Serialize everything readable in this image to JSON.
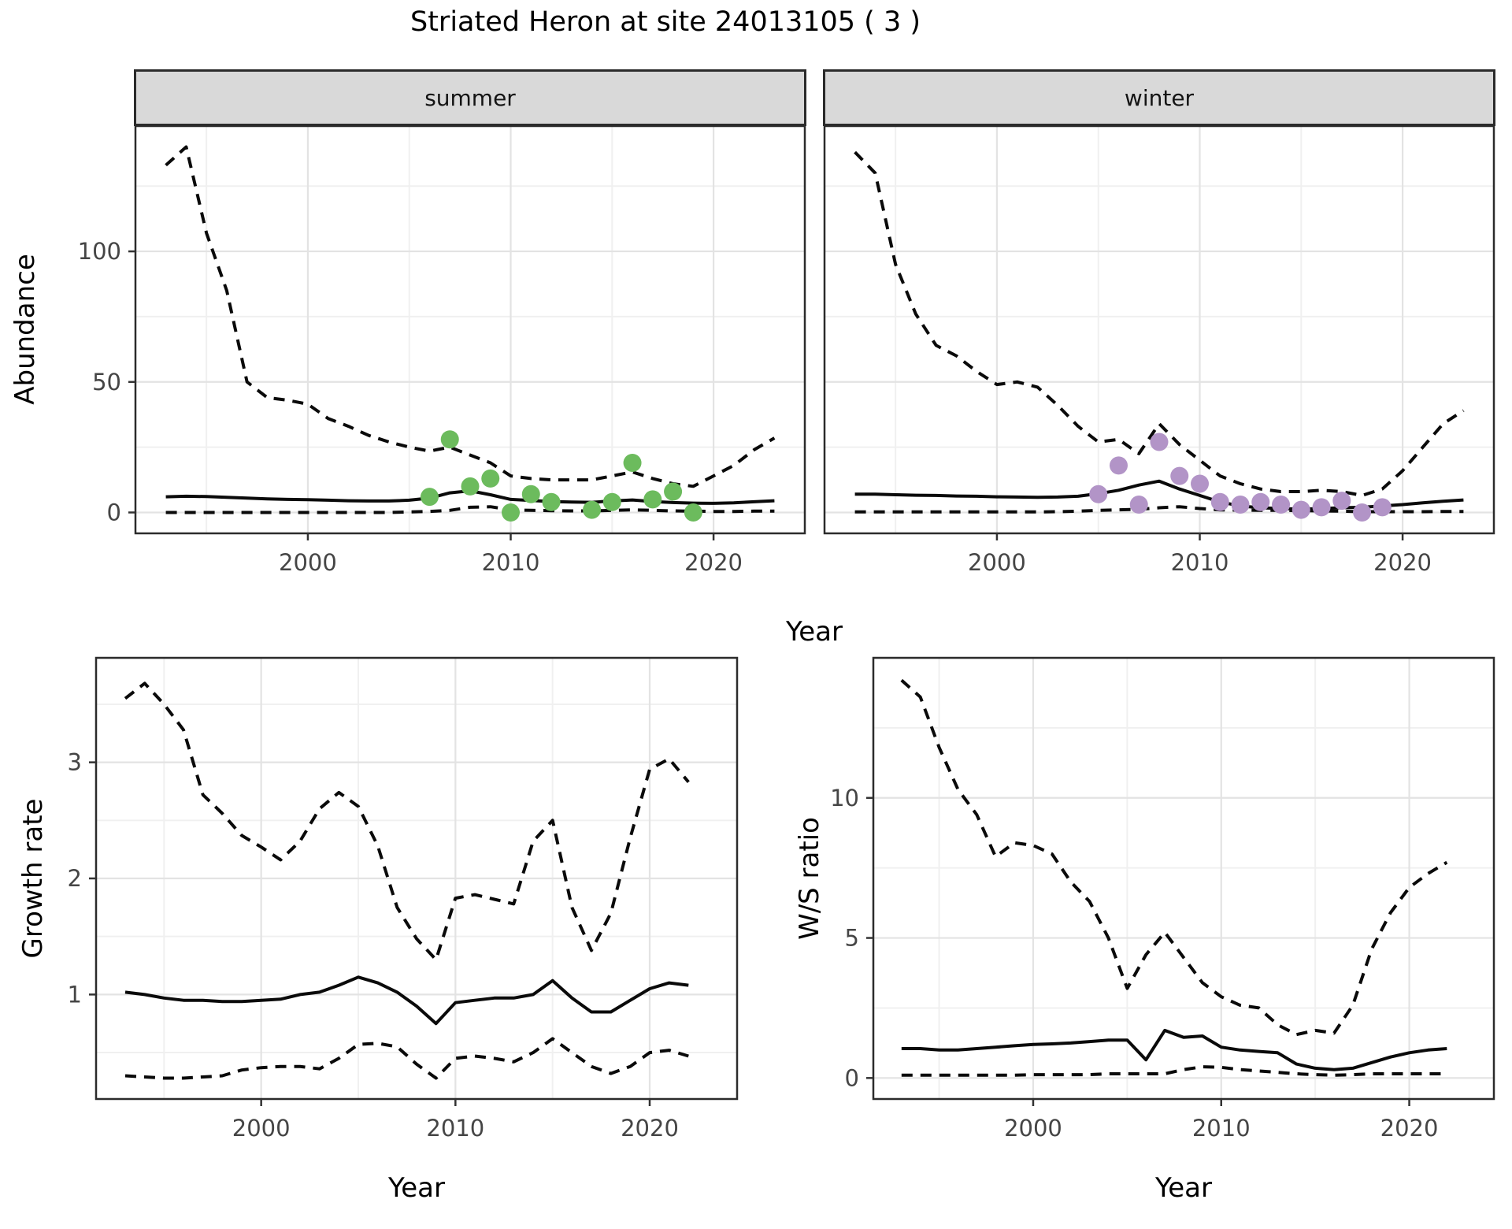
{
  "title": "Striated Heron at site 24013105 ( 3 )",
  "colors": {
    "summer_points": "#6CBB5D",
    "winter_points": "#B294C7",
    "strip_background": "#D9D9D9",
    "line": "#0A0A0A",
    "grid_major": "#E3E3E3",
    "grid_minor": "#F0F0F0",
    "panel_border": "#2B2B2B",
    "axis_text": "#454545"
  },
  "chart_data": [
    {
      "id": "abundance_summer",
      "type": "line",
      "facet_label": "summer",
      "ylabel": "Abundance",
      "xlabel": "Year",
      "xlim": [
        1991.5,
        2024.5
      ],
      "ylim": [
        -8,
        148
      ],
      "xticks": {
        "values": [
          2000,
          2010,
          2020
        ],
        "labels": [
          "2000",
          "2010",
          "2020"
        ]
      },
      "yticks": {
        "values": [
          0,
          50,
          100
        ],
        "labels": [
          "0",
          "50",
          "100"
        ]
      },
      "xminor": [
        1995,
        2005,
        2015
      ],
      "yminor": [
        25,
        75,
        125
      ],
      "grid": true,
      "show_yticklabels": true,
      "point_color": "#6CBB5D",
      "x": [
        1993,
        1994,
        1995,
        1996,
        1997,
        1998,
        1999,
        2000,
        2001,
        2002,
        2003,
        2004,
        2005,
        2006,
        2007,
        2008,
        2009,
        2010,
        2011,
        2012,
        2013,
        2014,
        2015,
        2016,
        2017,
        2018,
        2019,
        2020,
        2021,
        2022,
        2023
      ],
      "series": [
        {
          "name": "upper-95ci",
          "style": "dashed",
          "values": [
            133,
            140,
            107,
            85,
            50,
            44,
            43,
            41.5,
            36,
            33,
            29.5,
            27,
            25,
            23.5,
            25,
            22,
            19,
            14,
            13,
            12.5,
            12.5,
            12.5,
            14,
            15.5,
            13,
            11,
            10,
            14,
            18,
            24,
            28.5
          ]
        },
        {
          "name": "median",
          "style": "solid",
          "values": [
            6,
            6.2,
            6.1,
            5.8,
            5.5,
            5.2,
            5,
            4.9,
            4.7,
            4.5,
            4.4,
            4.4,
            4.7,
            5.5,
            7.5,
            8.3,
            6.8,
            5,
            4.6,
            4.2,
            4,
            3.9,
            4.4,
            4.8,
            4.2,
            3.8,
            3.6,
            3.5,
            3.7,
            4.1,
            4.5
          ]
        },
        {
          "name": "lower-95ci",
          "style": "dashed",
          "values": [
            0,
            0,
            0,
            0,
            0,
            0,
            0,
            0,
            0,
            0,
            0,
            0,
            0.2,
            0.4,
            0.8,
            2,
            2.2,
            1,
            0.8,
            0.7,
            0.6,
            0.6,
            0.8,
            1,
            0.8,
            0.6,
            0.5,
            0.4,
            0.4,
            0.5,
            0.5
          ]
        },
        {
          "name": "observed-counts",
          "style": "points",
          "px": [
            2006,
            2007,
            2008,
            2009,
            2010,
            2011,
            2012,
            2014,
            2015,
            2016,
            2017,
            2018,
            2019
          ],
          "py": [
            6,
            28,
            10,
            13,
            0,
            7,
            4,
            1,
            4,
            19,
            5,
            8,
            0
          ]
        }
      ]
    },
    {
      "id": "abundance_winter",
      "type": "line",
      "facet_label": "winter",
      "ylabel": "Abundance",
      "xlabel": "Year",
      "xlim": [
        1991.5,
        2024.5
      ],
      "ylim": [
        -8,
        148
      ],
      "xticks": {
        "values": [
          2000,
          2010,
          2020
        ],
        "labels": [
          "2000",
          "2010",
          "2020"
        ]
      },
      "yticks": {
        "values": [
          0,
          50,
          100
        ],
        "labels": [
          "0",
          "50",
          "100"
        ]
      },
      "xminor": [
        1995,
        2005,
        2015
      ],
      "yminor": [
        25,
        75,
        125
      ],
      "grid": true,
      "show_yticklabels": false,
      "point_color": "#B294C7",
      "x": [
        1993,
        1994,
        1995,
        1996,
        1997,
        1998,
        1999,
        2000,
        2001,
        2002,
        2003,
        2004,
        2005,
        2006,
        2007,
        2008,
        2009,
        2010,
        2011,
        2012,
        2013,
        2014,
        2015,
        2016,
        2017,
        2018,
        2019,
        2020,
        2021,
        2022,
        2023
      ],
      "series": [
        {
          "name": "upper-95ci",
          "style": "dashed",
          "values": [
            138,
            130,
            95,
            76,
            64,
            60,
            54,
            49,
            50,
            48,
            41,
            33,
            27,
            28,
            22.5,
            34,
            26,
            20,
            14,
            11,
            9,
            8,
            8,
            8.5,
            8,
            6.5,
            9,
            16,
            25,
            34,
            39
          ]
        },
        {
          "name": "median",
          "style": "solid",
          "values": [
            7,
            7,
            6.8,
            6.6,
            6.5,
            6.3,
            6.2,
            6,
            5.9,
            5.8,
            5.9,
            6.2,
            7.2,
            8.5,
            10.5,
            12,
            9,
            6.5,
            4,
            2.5,
            1.8,
            1.5,
            1.3,
            1.5,
            1.8,
            2,
            2.5,
            3,
            3.7,
            4.3,
            4.8
          ]
        },
        {
          "name": "lower-95ci",
          "style": "dashed",
          "values": [
            0.2,
            0.2,
            0.2,
            0.2,
            0.2,
            0.2,
            0.2,
            0.2,
            0.2,
            0.2,
            0.3,
            0.5,
            0.8,
            1,
            1.2,
            1.8,
            2.2,
            1.5,
            1,
            0.9,
            0.8,
            0.8,
            0.7,
            0.6,
            0.5,
            0.3,
            0.3,
            0.3,
            0.3,
            0.4,
            0.4
          ]
        },
        {
          "name": "observed-counts",
          "style": "points",
          "px": [
            2005,
            2006,
            2007,
            2008,
            2009,
            2010,
            2011,
            2012,
            2013,
            2014,
            2015,
            2016,
            2017,
            2018,
            2019
          ],
          "py": [
            7,
            18,
            3,
            27,
            14,
            11,
            4,
            3,
            4,
            3,
            1,
            2,
            4.5,
            0,
            2
          ]
        }
      ]
    },
    {
      "id": "growth_rate",
      "type": "line",
      "facet_label": "",
      "ylabel": "Growth rate",
      "xlabel": "Year",
      "xlim": [
        1991.5,
        2024.5
      ],
      "ylim": [
        0.1,
        3.9
      ],
      "xticks": {
        "values": [
          2000,
          2010,
          2020
        ],
        "labels": [
          "2000",
          "2010",
          "2020"
        ]
      },
      "yticks": {
        "values": [
          1,
          2,
          3
        ],
        "labels": [
          "1",
          "2",
          "3"
        ]
      },
      "xminor": [
        1995,
        2005,
        2015
      ],
      "yminor": [
        0.5,
        1.5,
        2.5,
        3.5
      ],
      "grid": true,
      "show_yticklabels": true,
      "point_color": "",
      "x": [
        1993,
        1994,
        1995,
        1996,
        1997,
        1998,
        1999,
        2000,
        2001,
        2002,
        2003,
        2004,
        2005,
        2006,
        2007,
        2008,
        2009,
        2010,
        2011,
        2012,
        2013,
        2014,
        2015,
        2016,
        2017,
        2018,
        2019,
        2020,
        2021,
        2022
      ],
      "series": [
        {
          "name": "upper-95ci",
          "style": "dashed",
          "values": [
            3.55,
            3.68,
            3.5,
            3.28,
            2.72,
            2.56,
            2.37,
            2.27,
            2.16,
            2.32,
            2.6,
            2.74,
            2.62,
            2.28,
            1.75,
            1.48,
            1.3,
            1.83,
            1.86,
            1.82,
            1.78,
            2.32,
            2.5,
            1.75,
            1.38,
            1.7,
            2.35,
            2.94,
            3.03,
            2.83
          ]
        },
        {
          "name": "median",
          "style": "solid",
          "values": [
            1.02,
            1.0,
            0.97,
            0.95,
            0.95,
            0.94,
            0.94,
            0.95,
            0.96,
            1.0,
            1.02,
            1.08,
            1.15,
            1.1,
            1.02,
            0.9,
            0.75,
            0.93,
            0.95,
            0.97,
            0.97,
            1.0,
            1.12,
            0.97,
            0.85,
            0.85,
            0.95,
            1.05,
            1.1,
            1.08
          ]
        },
        {
          "name": "lower-95ci",
          "style": "dashed",
          "values": [
            0.3,
            0.29,
            0.28,
            0.28,
            0.29,
            0.3,
            0.35,
            0.37,
            0.38,
            0.38,
            0.36,
            0.45,
            0.57,
            0.58,
            0.55,
            0.4,
            0.28,
            0.45,
            0.47,
            0.45,
            0.42,
            0.5,
            0.62,
            0.5,
            0.38,
            0.32,
            0.38,
            0.5,
            0.52,
            0.47
          ]
        }
      ]
    },
    {
      "id": "ws_ratio",
      "type": "line",
      "facet_label": "",
      "ylabel": "W/S ratio",
      "xlabel": "Year",
      "xlim": [
        1991.5,
        2024.5
      ],
      "ylim": [
        -0.75,
        15
      ],
      "xticks": {
        "values": [
          2000,
          2010,
          2020
        ],
        "labels": [
          "2000",
          "2010",
          "2020"
        ]
      },
      "yticks": {
        "values": [
          0,
          5,
          10
        ],
        "labels": [
          "0",
          "5",
          "10"
        ]
      },
      "xminor": [
        1995,
        2005,
        2015
      ],
      "yminor": [
        2.5,
        7.5,
        12.5
      ],
      "grid": true,
      "show_yticklabels": true,
      "point_color": "",
      "x": [
        1993,
        1994,
        1995,
        1996,
        1997,
        1998,
        1999,
        2000,
        2001,
        2002,
        2003,
        2004,
        2005,
        2006,
        2007,
        2008,
        2009,
        2010,
        2011,
        2012,
        2013,
        2014,
        2015,
        2016,
        2017,
        2018,
        2019,
        2020,
        2021,
        2022
      ],
      "series": [
        {
          "name": "upper-95ci",
          "style": "dashed",
          "values": [
            14.2,
            13.6,
            11.8,
            10.3,
            9.4,
            7.9,
            8.4,
            8.3,
            8.0,
            7.0,
            6.3,
            5.0,
            3.2,
            4.4,
            5.2,
            4.3,
            3.4,
            2.9,
            2.6,
            2.5,
            1.9,
            1.55,
            1.7,
            1.6,
            2.6,
            4.6,
            5.9,
            6.8,
            7.3,
            7.7
          ]
        },
        {
          "name": "median",
          "style": "solid",
          "values": [
            1.05,
            1.05,
            1.0,
            1.0,
            1.05,
            1.1,
            1.15,
            1.2,
            1.22,
            1.25,
            1.3,
            1.35,
            1.35,
            0.65,
            1.7,
            1.45,
            1.5,
            1.1,
            1.0,
            0.95,
            0.9,
            0.5,
            0.35,
            0.3,
            0.35,
            0.55,
            0.75,
            0.9,
            1.0,
            1.05
          ]
        },
        {
          "name": "lower-95ci",
          "style": "dashed",
          "values": [
            0.1,
            0.1,
            0.1,
            0.1,
            0.1,
            0.1,
            0.1,
            0.12,
            0.12,
            0.12,
            0.12,
            0.15,
            0.15,
            0.15,
            0.15,
            0.3,
            0.4,
            0.38,
            0.3,
            0.25,
            0.2,
            0.15,
            0.12,
            0.1,
            0.12,
            0.15,
            0.15,
            0.15,
            0.15,
            0.15
          ]
        }
      ]
    }
  ]
}
